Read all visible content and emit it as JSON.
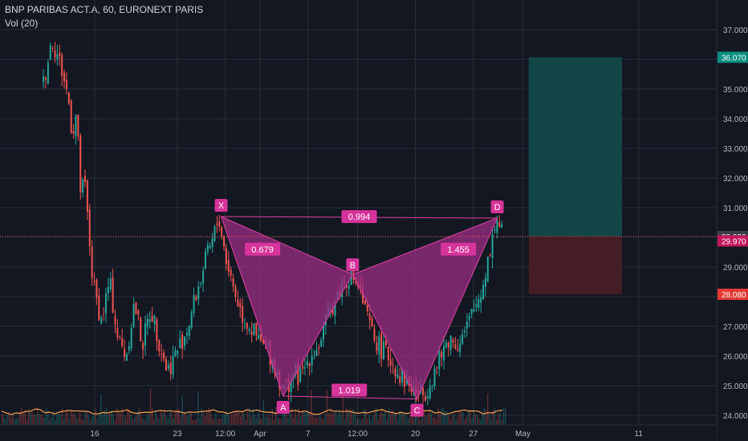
{
  "header": {
    "symbol_line": "BNP PARIBAS ACT.A, 60, EURONEXT PARIS",
    "volume_indicator": "Vol (20)"
  },
  "colors": {
    "background": "#131722",
    "grid": "#2a2e39",
    "text": "#b2b5be",
    "candle_up": "#26a69a",
    "candle_down": "#ef5350",
    "pattern_fill": "#9c2d84",
    "pattern_line": "#e040a0",
    "label_bg": "#d6349b",
    "target_zone": "#124a4a",
    "stop_zone": "#4a1e26",
    "volume_ma": "#f5a04b",
    "price_badge_green": "#0a8f80",
    "price_badge_red": "#e53935",
    "price_badge_gray": "#3a3e4a",
    "price_badge_pink": "#c2185b"
  },
  "chart_data": {
    "type": "candlestick",
    "title": "BNP PARIBAS ACT.A, 60, EURONEXT PARIS",
    "y_axis": {
      "range": [
        23.9,
        37.4
      ],
      "ticks": [
        "24.000",
        "25.000",
        "26.000",
        "27.000",
        "28.000",
        "29.000",
        "30.000",
        "31.000",
        "32.000",
        "33.000",
        "34.000",
        "35.000",
        "36.000",
        "37.000"
      ],
      "position": "right"
    },
    "x_axis": {
      "ticks": [
        {
          "label": "16",
          "t": 0.32
        },
        {
          "label": "23",
          "t": 1.32
        },
        {
          "label": "12:00",
          "t": 1.9
        },
        {
          "label": "Apr",
          "t": 2.32
        },
        {
          "label": "7",
          "t": 2.9
        },
        {
          "label": "12:00",
          "t": 3.5
        },
        {
          "label": "20",
          "t": 4.2
        },
        {
          "label": "27",
          "t": 4.9
        },
        {
          "label": "May",
          "t": 5.5
        },
        {
          "label": "11",
          "t": 6.9
        }
      ]
    },
    "price_path": [
      [
        -0.3,
        35.2
      ],
      [
        -0.2,
        36.7
      ],
      [
        -0.1,
        35.9
      ],
      [
        0.0,
        34.7
      ],
      [
        0.05,
        33.5
      ],
      [
        0.1,
        34.2
      ],
      [
        0.15,
        31.5
      ],
      [
        0.2,
        31.8
      ],
      [
        0.3,
        28.4
      ],
      [
        0.4,
        27.2
      ],
      [
        0.5,
        28.5
      ],
      [
        0.6,
        26.6
      ],
      [
        0.7,
        26.0
      ],
      [
        0.8,
        27.8
      ],
      [
        0.9,
        26.4
      ],
      [
        1.0,
        27.6
      ],
      [
        1.1,
        26.5
      ],
      [
        1.2,
        25.5
      ],
      [
        1.32,
        26.2
      ],
      [
        1.45,
        27.0
      ],
      [
        1.55,
        28.1
      ],
      [
        1.65,
        29.1
      ],
      [
        1.75,
        29.9
      ],
      [
        1.82,
        30.7
      ],
      [
        1.9,
        29.4
      ],
      [
        2.0,
        28.3
      ],
      [
        2.1,
        27.4
      ],
      [
        2.2,
        27.0
      ],
      [
        2.3,
        26.5
      ],
      [
        2.42,
        26.2
      ],
      [
        2.52,
        25.5
      ],
      [
        2.62,
        24.8
      ],
      [
        2.72,
        25.4
      ],
      [
        2.82,
        25.3
      ],
      [
        2.92,
        26.0
      ],
      [
        3.02,
        26.3
      ],
      [
        3.12,
        27.1
      ],
      [
        3.22,
        27.9
      ],
      [
        3.32,
        28.4
      ],
      [
        3.42,
        28.8
      ],
      [
        3.52,
        28.3
      ],
      [
        3.6,
        27.4
      ],
      [
        3.7,
        26.6
      ],
      [
        3.8,
        26.2
      ],
      [
        3.9,
        25.9
      ],
      [
        4.0,
        25.4
      ],
      [
        4.1,
        25.1
      ],
      [
        4.2,
        24.8
      ],
      [
        4.3,
        24.7
      ],
      [
        4.4,
        25.3
      ],
      [
        4.5,
        25.9
      ],
      [
        4.6,
        26.6
      ],
      [
        4.7,
        26.4
      ],
      [
        4.8,
        26.8
      ],
      [
        4.9,
        27.5
      ],
      [
        5.0,
        28.2
      ],
      [
        5.1,
        29.6
      ],
      [
        5.18,
        30.7
      ],
      [
        5.25,
        30.1
      ]
    ],
    "harmonic_pattern": {
      "points": [
        {
          "label": "X",
          "t": 1.85,
          "price": 30.7
        },
        {
          "label": "A",
          "t": 2.6,
          "price": 24.65
        },
        {
          "label": "B",
          "t": 3.44,
          "price": 28.75
        },
        {
          "label": "C",
          "t": 4.22,
          "price": 24.55
        },
        {
          "label": "D",
          "t": 5.19,
          "price": 30.65
        }
      ],
      "ratios": [
        {
          "label": "0.679",
          "t": 2.35,
          "price": 29.6
        },
        {
          "label": "0.994",
          "t": 3.52,
          "price": 30.7
        },
        {
          "label": "1.455",
          "t": 4.72,
          "price": 29.6
        },
        {
          "label": "1.019",
          "t": 3.4,
          "price": 24.85
        }
      ]
    },
    "position_tool": {
      "t_start": 5.57,
      "t_end": 6.7,
      "entry": 30.03,
      "target": 36.07,
      "stop": 28.08
    },
    "price_badges": [
      {
        "label": "36.070",
        "price": 36.07,
        "color": "price_badge_green"
      },
      {
        "label": "30.030",
        "price": 30.03,
        "color": "price_badge_gray"
      },
      {
        "label": "29.970",
        "price": 29.88,
        "color": "price_badge_pink"
      },
      {
        "label": "28.080",
        "price": 28.08,
        "color": "price_badge_red"
      }
    ],
    "last_price_line": 30.03
  }
}
